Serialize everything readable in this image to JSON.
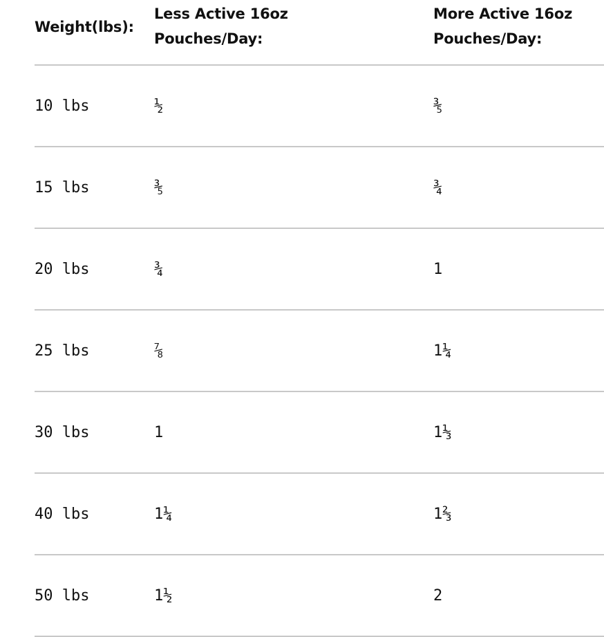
{
  "headers": [
    "Weight(lbs):",
    "Less Active 16oz Pouches/Day:",
    "More Active 16oz Pouches/Day:"
  ],
  "rows": [
    {
      "weight": "10 lbs",
      "less": "½",
      "more": "⅗"
    },
    {
      "weight": "15 lbs",
      "less": "⅗",
      "more": "¾"
    },
    {
      "weight": "20 lbs",
      "less": "¾",
      "more": "1"
    },
    {
      "weight": "25 lbs",
      "less": "⅞",
      "more": "1¼"
    },
    {
      "weight": "30 lbs",
      "less": "1",
      "more": "1⅓"
    },
    {
      "weight": "40 lbs",
      "less": "1¼",
      "more": "1⅔"
    },
    {
      "weight": "50 lbs",
      "less": "1½",
      "more": "2"
    }
  ]
}
